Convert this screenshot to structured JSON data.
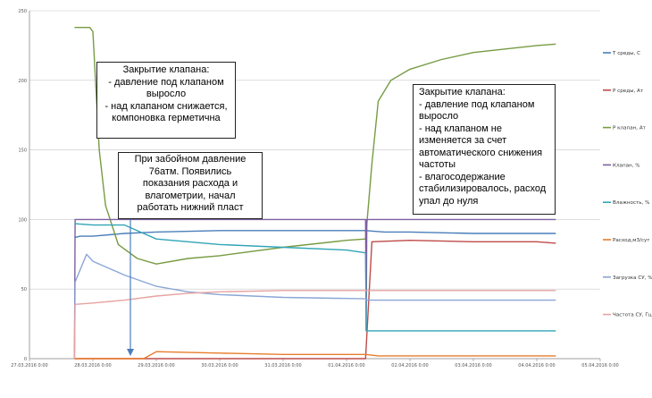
{
  "chart_data": {
    "type": "line",
    "title": "",
    "xlabel": "",
    "ylabel": "",
    "ylim": [
      0,
      250
    ],
    "y_ticks": [
      0,
      50,
      100,
      150,
      200,
      250
    ],
    "x_tick_labels": [
      "27.03.2016 0:00",
      "28.03.2016 0:00",
      "29.03.2016 0:00",
      "30.03.2016 0:00",
      "31.03.2016 0:00",
      "01.04.2016 0:00",
      "02.04.2016 0:00",
      "03.04.2016 0:00",
      "04.04.2016 0:00",
      "05.04.2016 0:00"
    ],
    "x_range": [
      0,
      9
    ],
    "grid": true,
    "legend_position": "right",
    "series": [
      {
        "name": "T среды, С",
        "color": "#4a7ebb",
        "x": [
          0.71,
          0.8,
          1.0,
          1.5,
          2.0,
          3.0,
          4.0,
          5.3,
          5.6,
          6.0,
          7.0,
          8.0,
          8.3
        ],
        "y": [
          87,
          88,
          88,
          90,
          91,
          92,
          92,
          92,
          91,
          91,
          90,
          90,
          90
        ]
      },
      {
        "name": "P среды, Ат",
        "color": "#be4b48",
        "x": [
          0.71,
          1.0,
          2.0,
          3.0,
          4.0,
          5.3,
          5.4,
          6.0,
          7.0,
          8.0,
          8.3
        ],
        "y": [
          0,
          0,
          0,
          0,
          0,
          0,
          84,
          85,
          84,
          84,
          83
        ]
      },
      {
        "name": "P клапан, Ат",
        "color": "#779b43",
        "x": [
          0.71,
          0.95,
          1.0,
          1.1,
          1.2,
          1.4,
          1.7,
          2.0,
          2.5,
          3.0,
          4.0,
          5.0,
          5.3,
          5.4,
          5.5,
          5.7,
          6.0,
          6.5,
          7.0,
          8.0,
          8.3
        ],
        "y": [
          238,
          238,
          235,
          150,
          110,
          82,
          72,
          68,
          72,
          74,
          80,
          85,
          86,
          140,
          185,
          200,
          208,
          215,
          220,
          225,
          226
        ]
      },
      {
        "name": "Клапан, %",
        "color": "#7d60a0",
        "x": [
          0.71,
          0.72,
          0.85,
          1.0,
          2.0,
          3.0,
          4.0,
          5.3,
          5.31,
          5.32,
          8.3
        ],
        "y": [
          0,
          100,
          100,
          100,
          100,
          100,
          100,
          100,
          20,
          100,
          100
        ]
      },
      {
        "name": "Влажность, %",
        "color": "#31a5b6",
        "x": [
          0.71,
          1.0,
          1.5,
          1.8,
          2.0,
          2.5,
          3.0,
          4.0,
          5.0,
          5.3,
          5.31,
          8.3
        ],
        "y": [
          97,
          96,
          96,
          90,
          86,
          84,
          82,
          80,
          78,
          76,
          20,
          20
        ]
      },
      {
        "name": "Расход,м3/сут",
        "color": "#e87c2d",
        "x": [
          0.71,
          1.8,
          2.0,
          3.0,
          4.0,
          5.3,
          5.5,
          8.3
        ],
        "y": [
          0,
          0,
          5,
          4,
          3,
          3,
          2,
          2
        ]
      },
      {
        "name": "Загрузка СУ, %",
        "color": "#8aa6d6",
        "x": [
          0.71,
          0.72,
          0.9,
          1.0,
          1.5,
          2.0,
          2.5,
          3.0,
          4.0,
          5.3,
          5.31,
          8.3
        ],
        "y": [
          5,
          55,
          75,
          70,
          60,
          52,
          48,
          46,
          44,
          43,
          42,
          42
        ]
      },
      {
        "name": "Частота СУ, Гц",
        "color": "#e6a3a2",
        "x": [
          0.71,
          0.72,
          1.0,
          1.5,
          2.0,
          2.5,
          3.0,
          4.0,
          5.3,
          5.31,
          8.3
        ],
        "y": [
          0,
          39,
          40,
          42,
          45,
          47,
          48,
          49,
          49,
          49,
          49
        ]
      }
    ]
  },
  "annotations": [
    {
      "lines": [
        "Закрытие клапана:",
        "- давление под клапаном",
        "выросло",
        "- над клапаном снижается,",
        "компоновка герметична"
      ]
    },
    {
      "lines": [
        "При забойном давление",
        "76атм. Появились",
        "показания расхода и",
        "влагометрии, начал",
        "работать нижний пласт"
      ]
    },
    {
      "lines": [
        "Закрытие клапана:",
        "- давление под клапаном",
        "выросло",
        "- над клапаном не",
        "изменяется за счет",
        "автоматического снижения",
        "частоты",
        "- влагосодержание",
        "стабилизировалось, расход",
        "упал до нуля"
      ]
    }
  ]
}
